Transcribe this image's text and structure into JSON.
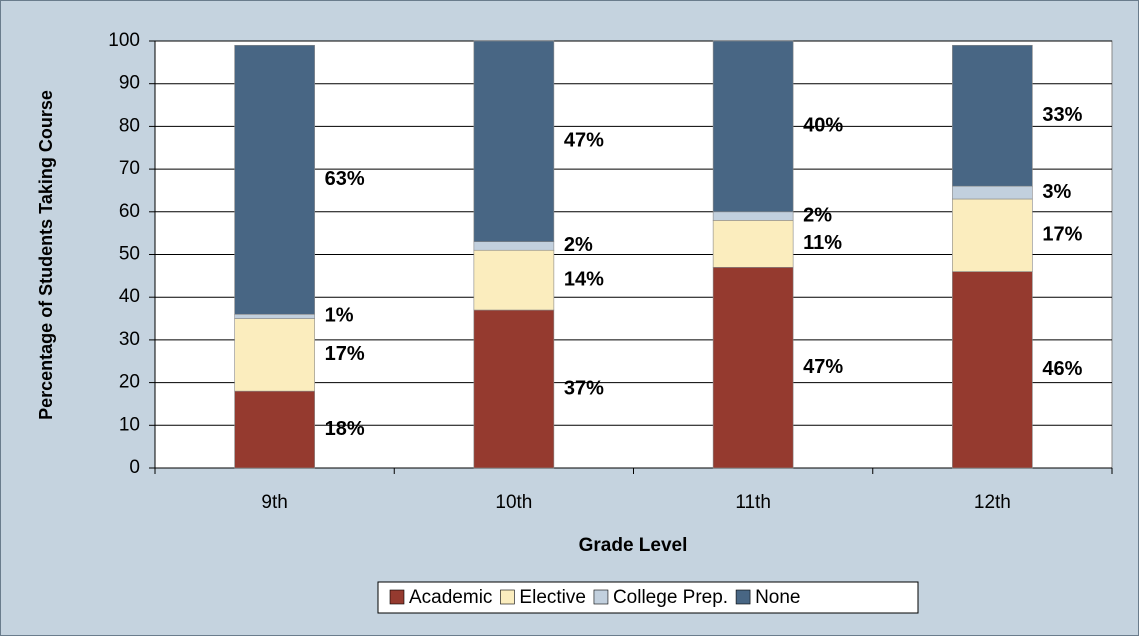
{
  "chart_data": {
    "type": "stacked_bar",
    "x_label": "Grade Level",
    "y_label": "Percentage of Students Taking Course",
    "categories": [
      "9th",
      "10th",
      "11th",
      "12th"
    ],
    "series": [
      {
        "name": "Academic",
        "color": "#953a2f",
        "values": [
          18,
          37,
          47,
          46
        ],
        "value_labels": [
          "18%",
          "37%",
          "47%",
          "46%"
        ]
      },
      {
        "name": "Elective",
        "color": "#fbedbe",
        "values": [
          17,
          14,
          11,
          17
        ],
        "value_labels": [
          "17%",
          "14%",
          "11%",
          "17%"
        ]
      },
      {
        "name": "College Prep.",
        "color": "#c2d0de",
        "values": [
          1,
          2,
          2,
          3
        ],
        "value_labels": [
          "1%",
          "2%",
          "2%",
          "3%"
        ]
      },
      {
        "name": "None",
        "color": "#486684",
        "values": [
          63,
          47,
          40,
          33
        ],
        "value_labels": [
          "63%",
          "47%",
          "40%",
          "33%"
        ]
      }
    ],
    "ylim": [
      0,
      100
    ],
    "yticks": [
      0,
      10,
      20,
      30,
      40,
      50,
      60,
      70,
      80,
      90,
      100
    ],
    "grid": true,
    "legend": "bottom"
  }
}
